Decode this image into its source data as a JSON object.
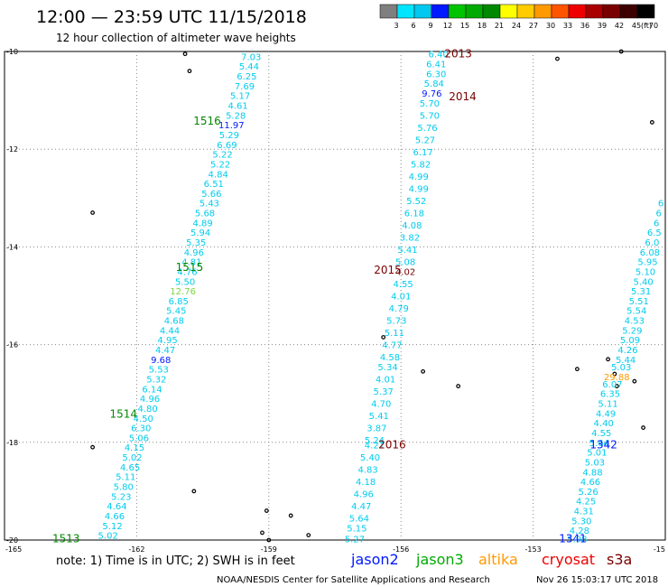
{
  "chart_data": {
    "type": "scatter",
    "title": "12:00 — 23:59 UTC 11/15/2018",
    "subtitle": "12 hour collection of altimeter wave heights",
    "xlim": [
      -165,
      -150
    ],
    "ylim": [
      -20,
      -10
    ],
    "x_ticks": [
      "-165",
      "-162",
      "-159",
      "-156",
      "-153",
      "-15"
    ],
    "y_ticks": [
      "-10",
      "-12",
      "-14",
      "-16",
      "-18",
      "-20"
    ],
    "grid": true,
    "colorbar": {
      "unit": "(ft)",
      "labels": [
        "3",
        "6",
        "9",
        "12",
        "15",
        "18",
        "21",
        "24",
        "27",
        "30",
        "33",
        "36",
        "39",
        "42",
        "45",
        "70"
      ],
      "colors": [
        "#7f7f7f",
        "#00e5ff",
        "#00c8ee",
        "#0019ff",
        "#00c400",
        "#00aa00",
        "#008800",
        "#ffff00",
        "#ffcc00",
        "#ff9900",
        "#ff5500",
        "#ee0000",
        "#aa0000",
        "#7a0000",
        "#3d0000",
        "#000000"
      ]
    },
    "passes": [
      {
        "label": "1516",
        "x": -160.4,
        "y": -11.42
      },
      {
        "label": "1515",
        "x": -160.8,
        "y": -14.42
      },
      {
        "label": "1514",
        "x": -162.3,
        "y": -17.42
      },
      {
        "label": "1513",
        "x": -163.6,
        "y": -19.97
      },
      {
        "label": "2013",
        "x": -154.7,
        "y": -10.05
      },
      {
        "label": "2014",
        "x": -154.6,
        "y": -10.92
      },
      {
        "label": "2015",
        "x": -156.3,
        "y": -14.47
      },
      {
        "label": "2016",
        "x": -156.2,
        "y": -18.05
      },
      {
        "label": "1342",
        "x": -151.4,
        "y": -18.05
      },
      {
        "label": "1341",
        "x": -152.1,
        "y": -19.97
      }
    ],
    "series": [
      {
        "name": "track-1516-1513",
        "points": [
          {
            "x": -159.4,
            "y": -10.1,
            "v": "7.03"
          },
          {
            "x": -159.45,
            "y": -10.3,
            "v": "5.44"
          },
          {
            "x": -159.5,
            "y": -10.5,
            "v": "6.25"
          },
          {
            "x": -159.55,
            "y": -10.7,
            "v": "7.69"
          },
          {
            "x": -159.65,
            "y": -10.9,
            "v": "5.17"
          },
          {
            "x": -159.7,
            "y": -11.1,
            "v": "4.61"
          },
          {
            "x": -159.75,
            "y": -11.3,
            "v": "5.28"
          },
          {
            "x": -159.85,
            "y": -11.5,
            "v": "11.97",
            "c": "#0019ff"
          },
          {
            "x": -159.9,
            "y": -11.7,
            "v": "5.29"
          },
          {
            "x": -159.95,
            "y": -11.9,
            "v": "6.69"
          },
          {
            "x": -160.05,
            "y": -12.1,
            "v": "5.22"
          },
          {
            "x": -160.1,
            "y": -12.3,
            "v": "5.22"
          },
          {
            "x": -160.15,
            "y": -12.5,
            "v": "4.84"
          },
          {
            "x": -160.25,
            "y": -12.7,
            "v": "6.51"
          },
          {
            "x": -160.3,
            "y": -12.9,
            "v": "5.66"
          },
          {
            "x": -160.35,
            "y": -13.1,
            "v": "5.43"
          },
          {
            "x": -160.45,
            "y": -13.3,
            "v": "5.68"
          },
          {
            "x": -160.5,
            "y": -13.5,
            "v": "4.89"
          },
          {
            "x": -160.55,
            "y": -13.7,
            "v": "5.94"
          },
          {
            "x": -160.65,
            "y": -13.9,
            "v": "5.35"
          },
          {
            "x": -160.7,
            "y": -14.1,
            "v": "4.96"
          },
          {
            "x": -160.75,
            "y": -14.3,
            "v": "4.81"
          },
          {
            "x": -160.85,
            "y": -14.5,
            "v": "4.76"
          },
          {
            "x": -160.9,
            "y": -14.7,
            "v": "5.50"
          },
          {
            "x": -160.95,
            "y": -14.9,
            "v": "12.76",
            "c": "#7ad640"
          },
          {
            "x": -161.05,
            "y": -15.1,
            "v": "6.85"
          },
          {
            "x": -161.1,
            "y": -15.3,
            "v": "5.45"
          },
          {
            "x": -161.15,
            "y": -15.5,
            "v": "4.68"
          },
          {
            "x": -161.25,
            "y": -15.7,
            "v": "4.44"
          },
          {
            "x": -161.3,
            "y": -15.9,
            "v": "4.95"
          },
          {
            "x": -161.35,
            "y": -16.1,
            "v": "4.47"
          },
          {
            "x": -161.45,
            "y": -16.3,
            "v": "9.68",
            "c": "#0019ff"
          },
          {
            "x": -161.5,
            "y": -16.5,
            "v": "5.53"
          },
          {
            "x": -161.55,
            "y": -16.7,
            "v": "5.32"
          },
          {
            "x": -161.65,
            "y": -16.9,
            "v": "6.14"
          },
          {
            "x": -161.7,
            "y": -17.1,
            "v": "4.96"
          },
          {
            "x": -161.75,
            "y": -17.3,
            "v": "4.80"
          },
          {
            "x": -161.85,
            "y": -17.5,
            "v": "4.50"
          },
          {
            "x": -161.9,
            "y": -17.7,
            "v": "6.30"
          },
          {
            "x": -161.95,
            "y": -17.9,
            "v": "5.06"
          },
          {
            "x": -162.05,
            "y": -18.1,
            "v": "4.15"
          },
          {
            "x": -162.1,
            "y": -18.3,
            "v": "5.02"
          },
          {
            "x": -162.15,
            "y": -18.5,
            "v": "4.65"
          },
          {
            "x": -162.25,
            "y": -18.7,
            "v": "5.11"
          },
          {
            "x": -162.3,
            "y": -18.9,
            "v": "5.80"
          },
          {
            "x": -162.35,
            "y": -19.1,
            "v": "5.23"
          },
          {
            "x": -162.45,
            "y": -19.3,
            "v": "4.64"
          },
          {
            "x": -162.5,
            "y": -19.5,
            "v": "4.66"
          },
          {
            "x": -162.55,
            "y": -19.7,
            "v": "5.12"
          },
          {
            "x": -162.65,
            "y": -19.9,
            "v": "5.02"
          }
        ]
      },
      {
        "name": "track-2013-2016",
        "points": [
          {
            "x": -155.15,
            "y": -10.05,
            "v": "6.40"
          },
          {
            "x": -155.2,
            "y": -10.25,
            "v": "6.41"
          },
          {
            "x": -155.2,
            "y": -10.45,
            "v": "6.30"
          },
          {
            "x": -155.25,
            "y": -10.65,
            "v": "5.84"
          },
          {
            "x": -155.3,
            "y": -10.85,
            "v": "9.76",
            "c": "#0019ff"
          },
          {
            "x": -155.35,
            "y": -11.05,
            "v": "5.70"
          },
          {
            "x": -155.35,
            "y": -11.3,
            "v": "5.70"
          },
          {
            "x": -155.4,
            "y": -11.55,
            "v": "5.76"
          },
          {
            "x": -155.45,
            "y": -11.8,
            "v": "5.27"
          },
          {
            "x": -155.5,
            "y": -12.05,
            "v": "6.17"
          },
          {
            "x": -155.55,
            "y": -12.3,
            "v": "5.82"
          },
          {
            "x": -155.6,
            "y": -12.55,
            "v": "4.99"
          },
          {
            "x": -155.6,
            "y": -12.8,
            "v": "4.99"
          },
          {
            "x": -155.65,
            "y": -13.05,
            "v": "5.52"
          },
          {
            "x": -155.7,
            "y": -13.3,
            "v": "6.18"
          },
          {
            "x": -155.75,
            "y": -13.55,
            "v": "4.08"
          },
          {
            "x": -155.8,
            "y": -13.8,
            "v": "3.82"
          },
          {
            "x": -155.85,
            "y": -14.05,
            "v": "5.41"
          },
          {
            "x": -155.9,
            "y": -14.3,
            "v": "5.08"
          },
          {
            "x": -155.9,
            "y": -14.5,
            "v": "4.02",
            "c": "#7a0000"
          },
          {
            "x": -155.95,
            "y": -14.75,
            "v": "4.55"
          },
          {
            "x": -156.0,
            "y": -15.0,
            "v": "4.01"
          },
          {
            "x": -156.05,
            "y": -15.25,
            "v": "4.79"
          },
          {
            "x": -156.1,
            "y": -15.5,
            "v": "5.73"
          },
          {
            "x": -156.15,
            "y": -15.75,
            "v": "5.11"
          },
          {
            "x": -156.2,
            "y": -16.0,
            "v": "4.77"
          },
          {
            "x": -156.25,
            "y": -16.25,
            "v": "4.58"
          },
          {
            "x": -156.3,
            "y": -16.45,
            "v": "5.34"
          },
          {
            "x": -156.35,
            "y": -16.7,
            "v": "4.01"
          },
          {
            "x": -156.4,
            "y": -16.95,
            "v": "5.37"
          },
          {
            "x": -156.45,
            "y": -17.2,
            "v": "4.70"
          },
          {
            "x": -156.5,
            "y": -17.45,
            "v": "5.41"
          },
          {
            "x": -156.55,
            "y": -17.7,
            "v": "3.87"
          },
          {
            "x": -156.6,
            "y": -17.95,
            "v": "5.24"
          },
          {
            "x": -156.6,
            "y": -18.05,
            "v": "4.21"
          },
          {
            "x": -156.7,
            "y": -18.3,
            "v": "5.40"
          },
          {
            "x": -156.75,
            "y": -18.55,
            "v": "4.83"
          },
          {
            "x": -156.8,
            "y": -18.8,
            "v": "4.18"
          },
          {
            "x": -156.85,
            "y": -19.05,
            "v": "4.96"
          },
          {
            "x": -156.9,
            "y": -19.3,
            "v": "4.47"
          },
          {
            "x": -156.95,
            "y": -19.55,
            "v": "5.64"
          },
          {
            "x": -157.0,
            "y": -19.75,
            "v": "5.15"
          },
          {
            "x": -157.05,
            "y": -19.97,
            "v": "5.27"
          }
        ]
      },
      {
        "name": "track-1342-1341",
        "points": [
          {
            "x": -150.1,
            "y": -13.1,
            "v": "6"
          },
          {
            "x": -150.15,
            "y": -13.3,
            "v": "6"
          },
          {
            "x": -150.2,
            "y": -13.5,
            "v": "6"
          },
          {
            "x": -150.25,
            "y": -13.7,
            "v": "6.5"
          },
          {
            "x": -150.3,
            "y": -13.9,
            "v": "6.0"
          },
          {
            "x": -150.35,
            "y": -14.1,
            "v": "6.08"
          },
          {
            "x": -150.4,
            "y": -14.3,
            "v": "5.95"
          },
          {
            "x": -150.45,
            "y": -14.5,
            "v": "5.10"
          },
          {
            "x": -150.5,
            "y": -14.7,
            "v": "5.40"
          },
          {
            "x": -150.55,
            "y": -14.9,
            "v": "5.31"
          },
          {
            "x": -150.6,
            "y": -15.1,
            "v": "5.51"
          },
          {
            "x": -150.65,
            "y": -15.3,
            "v": "5.54"
          },
          {
            "x": -150.7,
            "y": -15.5,
            "v": "4.53"
          },
          {
            "x": -150.75,
            "y": -15.7,
            "v": "5.29"
          },
          {
            "x": -150.8,
            "y": -15.9,
            "v": "5.09"
          },
          {
            "x": -150.85,
            "y": -16.1,
            "v": "4.26"
          },
          {
            "x": -150.9,
            "y": -16.3,
            "v": "5.44"
          },
          {
            "x": -151.0,
            "y": -16.45,
            "v": "5.03"
          },
          {
            "x": -151.1,
            "y": -16.65,
            "v": "29.88",
            "c": "#ff9900"
          },
          {
            "x": -151.2,
            "y": -16.8,
            "v": "6.07"
          },
          {
            "x": -151.25,
            "y": -17.0,
            "v": "6.35"
          },
          {
            "x": -151.3,
            "y": -17.2,
            "v": "5.11"
          },
          {
            "x": -151.35,
            "y": -17.4,
            "v": "4.49"
          },
          {
            "x": -151.4,
            "y": -17.6,
            "v": "4.40"
          },
          {
            "x": -151.45,
            "y": -17.8,
            "v": "4.55"
          },
          {
            "x": -151.5,
            "y": -18.0,
            "v": "5.64"
          },
          {
            "x": -151.55,
            "y": -18.2,
            "v": "5.01"
          },
          {
            "x": -151.6,
            "y": -18.4,
            "v": "5.03"
          },
          {
            "x": -151.65,
            "y": -18.6,
            "v": "4.88"
          },
          {
            "x": -151.7,
            "y": -18.8,
            "v": "4.66"
          },
          {
            "x": -151.75,
            "y": -19.0,
            "v": "5.26"
          },
          {
            "x": -151.8,
            "y": -19.2,
            "v": "4.25"
          },
          {
            "x": -151.85,
            "y": -19.4,
            "v": "4.31"
          },
          {
            "x": -151.9,
            "y": -19.6,
            "v": "5.30"
          },
          {
            "x": -151.95,
            "y": -19.8,
            "v": "4.28"
          },
          {
            "x": -152.0,
            "y": -19.97,
            "v": "5.98"
          }
        ]
      }
    ],
    "islands": [
      {
        "x": -160.9,
        "y": -10.05
      },
      {
        "x": -160.8,
        "y": -10.4
      },
      {
        "x": -163.0,
        "y": -13.3
      },
      {
        "x": -156.4,
        "y": -15.85
      },
      {
        "x": -155.5,
        "y": -16.55
      },
      {
        "x": -154.7,
        "y": -16.85
      },
      {
        "x": -152.45,
        "y": -10.15
      },
      {
        "x": -151.0,
        "y": -10.0
      },
      {
        "x": -150.3,
        "y": -11.45
      },
      {
        "x": -152.0,
        "y": -16.5
      },
      {
        "x": -151.3,
        "y": -16.3
      },
      {
        "x": -151.1,
        "y": -16.85
      },
      {
        "x": -151.15,
        "y": -16.6
      },
      {
        "x": -150.7,
        "y": -16.75
      },
      {
        "x": -150.5,
        "y": -17.7
      },
      {
        "x": -163.0,
        "y": -18.1
      },
      {
        "x": -160.7,
        "y": -19.0
      },
      {
        "x": -159.05,
        "y": -19.4
      },
      {
        "x": -158.5,
        "y": -19.5
      },
      {
        "x": -159.15,
        "y": -19.85
      },
      {
        "x": -159.0,
        "y": -20.0
      },
      {
        "x": -158.1,
        "y": -19.9
      }
    ]
  },
  "note": "note: 1) Time is in UTC; 2) SWH is in feet",
  "missions": [
    {
      "name": "jason2",
      "color": "#0019ff"
    },
    {
      "name": "jason3",
      "color": "#00aa00"
    },
    {
      "name": "altika",
      "color": "#ff9900"
    },
    {
      "name": "cryosat",
      "color": "#ee0000"
    },
    {
      "name": "s3a",
      "color": "#7a0000"
    }
  ],
  "credit": "NOAA/NESDIS Center for Satellite Applications and Research",
  "timestamp": "Nov 26 15:03:17 UTC 2018",
  "colors": {
    "track": "#00ccee",
    "pass_jason3": "#008800",
    "pass_s3a": "#7a0000",
    "pass_jason2": "#0019ff",
    "grid": "#888888"
  }
}
